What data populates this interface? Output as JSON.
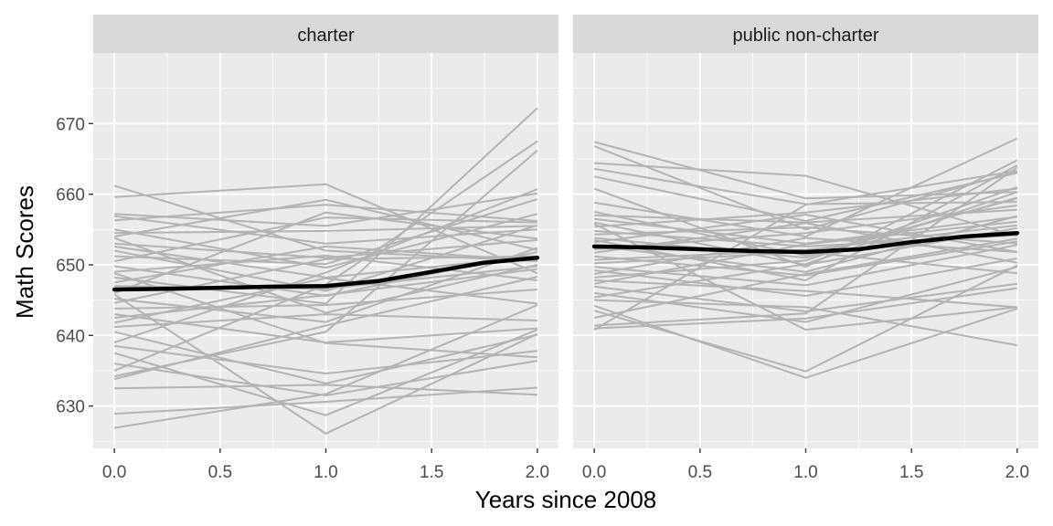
{
  "chart_data": {
    "type": "line",
    "xlabel": "Years since 2008",
    "ylabel": "Math Scores",
    "xlim": [
      -0.1,
      2.1
    ],
    "ylim": [
      624,
      680
    ],
    "x_ticks": [
      0.0,
      0.5,
      1.0,
      1.5,
      2.0
    ],
    "x_tick_labels": [
      "0.0",
      "0.5",
      "1.0",
      "1.5",
      "2.0"
    ],
    "y_ticks": [
      630,
      640,
      650,
      660,
      670
    ],
    "y_tick_labels": [
      "630",
      "640",
      "650",
      "660",
      "670"
    ],
    "grid": true,
    "colors": {
      "individual": "#b3b3b3",
      "smooth": "#000000",
      "panel_bg": "#ebebeb",
      "strip_bg": "#d9d9d9",
      "grid": "#ffffff"
    },
    "panels": [
      {
        "label": "charter",
        "x": [
          0,
          1,
          2
        ],
        "school_lines": [
          [
            661.2,
            652.0,
            650.5
          ],
          [
            659.6,
            661.4,
            648.8
          ],
          [
            657.2,
            655.5,
            660.1
          ],
          [
            656.9,
            653.0,
            655.0
          ],
          [
            656.3,
            658.5,
            656.2
          ],
          [
            655.0,
            649.6,
            657.2
          ],
          [
            654.5,
            654.8,
            655.5
          ],
          [
            654.0,
            659.2,
            652.1
          ],
          [
            653.0,
            651.0,
            653.5
          ],
          [
            652.6,
            648.2,
            651.2
          ],
          [
            652.0,
            646.3,
            655.6
          ],
          [
            651.2,
            650.1,
            659.3
          ],
          [
            650.5,
            656.7,
            656.0
          ],
          [
            649.8,
            645.6,
            651.8
          ],
          [
            649.0,
            651.3,
            647.8
          ],
          [
            648.2,
            644.5,
            672.2
          ],
          [
            647.5,
            652.6,
            650.6
          ],
          [
            647.0,
            646.6,
            649.8
          ],
          [
            646.0,
            657.4,
            653.7
          ],
          [
            645.2,
            641.9,
            652.4
          ],
          [
            644.6,
            650.8,
            651.2
          ],
          [
            643.8,
            644.3,
            646.5
          ],
          [
            643.0,
            639.0,
            641.0
          ],
          [
            642.5,
            645.7,
            649.4
          ],
          [
            641.8,
            648.1,
            644.5
          ],
          [
            641.2,
            643.0,
            642.1
          ],
          [
            640.5,
            633.2,
            640.1
          ],
          [
            639.0,
            648.9,
            660.7
          ],
          [
            638.5,
            634.6,
            637.8
          ],
          [
            637.5,
            628.7,
            640.8
          ],
          [
            636.0,
            631.5,
            636.4
          ],
          [
            635.0,
            647.2,
            667.5
          ],
          [
            634.2,
            640.5,
            666.2
          ],
          [
            633.8,
            641.4,
            648.3
          ],
          [
            632.5,
            633.0,
            631.6
          ],
          [
            628.9,
            630.6,
            632.6
          ],
          [
            626.9,
            631.7,
            644.3
          ],
          [
            645.8,
            626.1,
            640.2
          ],
          [
            653.8,
            643.2,
            650.0
          ],
          [
            648.8,
            638.9,
            636.9
          ]
        ],
        "smooth": {
          "x": [
            0,
            0.25,
            0.5,
            0.75,
            1.0,
            1.25,
            1.5,
            1.75,
            2.0
          ],
          "y": [
            646.5,
            646.6,
            646.75,
            646.9,
            647.0,
            647.7,
            649.0,
            650.3,
            651.0
          ]
        }
      },
      {
        "label": "public non-charter",
        "x": [
          0,
          1,
          2
        ],
        "school_lines": [
          [
            667.4,
            659.4,
            660.3
          ],
          [
            666.8,
            655.0,
            663.2
          ],
          [
            664.4,
            662.6,
            654.1
          ],
          [
            663.6,
            658.6,
            658.9
          ],
          [
            662.5,
            656.2,
            663.0
          ],
          [
            660.8,
            649.7,
            664.8
          ],
          [
            658.8,
            654.0,
            667.9
          ],
          [
            657.5,
            651.3,
            659.4
          ],
          [
            657.0,
            656.0,
            657.8
          ],
          [
            656.5,
            653.0,
            656.8
          ],
          [
            656.0,
            650.0,
            655.2
          ],
          [
            655.4,
            657.4,
            660.8
          ],
          [
            654.8,
            652.6,
            654.2
          ],
          [
            654.3,
            655.3,
            653.0
          ],
          [
            653.8,
            651.0,
            659.5
          ],
          [
            653.2,
            657.1,
            651.8
          ],
          [
            652.7,
            649.0,
            656.9
          ],
          [
            652.2,
            654.5,
            658.4
          ],
          [
            651.7,
            655.9,
            650.3
          ],
          [
            651.2,
            648.5,
            653.3
          ],
          [
            650.7,
            652.1,
            655.6
          ],
          [
            650.2,
            651.8,
            648.8
          ],
          [
            649.7,
            647.1,
            652.8
          ],
          [
            649.2,
            645.6,
            650.9
          ],
          [
            648.7,
            653.8,
            651.8
          ],
          [
            648.2,
            650.6,
            661.0
          ],
          [
            647.8,
            646.3,
            644.0
          ],
          [
            647.3,
            652.9,
            656.1
          ],
          [
            646.9,
            643.4,
            647.3
          ],
          [
            646.0,
            641.9,
            649.7
          ],
          [
            645.4,
            650.1,
            660.3
          ],
          [
            645.0,
            644.0,
            638.6
          ],
          [
            644.2,
            634.0,
            643.8
          ],
          [
            643.5,
            634.9,
            649.9
          ],
          [
            642.5,
            648.7,
            653.7
          ],
          [
            641.4,
            643.1,
            663.8
          ],
          [
            641.0,
            642.4,
            646.7
          ],
          [
            640.8,
            658.5,
            663.3
          ],
          [
            653.5,
            647.8,
            664.1
          ],
          [
            655.8,
            640.8,
            644.0
          ]
        ],
        "smooth": {
          "x": [
            0,
            0.25,
            0.5,
            0.75,
            1.0,
            1.25,
            1.5,
            1.75,
            2.0
          ],
          "y": [
            652.6,
            652.45,
            652.2,
            651.95,
            651.8,
            652.2,
            653.2,
            654.0,
            654.5
          ]
        }
      }
    ]
  }
}
